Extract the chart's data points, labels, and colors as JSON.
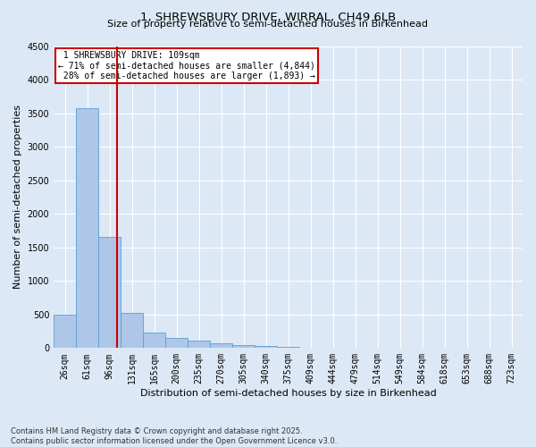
{
  "title1": "1, SHREWSBURY DRIVE, WIRRAL, CH49 6LB",
  "title2": "Size of property relative to semi-detached houses in Birkenhead",
  "xlabel": "Distribution of semi-detached houses by size in Birkenhead",
  "ylabel": "Number of semi-detached properties",
  "footer": "Contains HM Land Registry data © Crown copyright and database right 2025.\nContains public sector information licensed under the Open Government Licence v3.0.",
  "bar_labels": [
    "26sqm",
    "61sqm",
    "96sqm",
    "131sqm",
    "165sqm",
    "200sqm",
    "235sqm",
    "270sqm",
    "305sqm",
    "340sqm",
    "375sqm",
    "409sqm",
    "444sqm",
    "479sqm",
    "514sqm",
    "549sqm",
    "584sqm",
    "618sqm",
    "653sqm",
    "688sqm",
    "723sqm"
  ],
  "bar_values": [
    500,
    3580,
    1650,
    530,
    230,
    145,
    110,
    70,
    45,
    30,
    20,
    10,
    6,
    4,
    3,
    2,
    1,
    1,
    1,
    1,
    1
  ],
  "bar_color": "#aec6e8",
  "bar_edge_color": "#5a9fd4",
  "ylim": [
    0,
    4500
  ],
  "yticks": [
    0,
    500,
    1000,
    1500,
    2000,
    2500,
    3000,
    3500,
    4000,
    4500
  ],
  "property_label": "1 SHREWSBURY DRIVE: 109sqm",
  "smaller_pct": "71%",
  "smaller_n": "4,844",
  "larger_pct": "28%",
  "larger_n": "1,893",
  "vline_color": "#cc0000",
  "vline_x_index": 2.35,
  "annotation_box_color": "#ffffff",
  "annotation_box_edge": "#cc0000",
  "background_color": "#dce8f5",
  "plot_bg_color": "#dce8f5",
  "grid_color": "#ffffff",
  "title1_fontsize": 9.5,
  "title2_fontsize": 8,
  "label_fontsize": 8,
  "tick_fontsize": 7,
  "annot_fontsize": 7
}
